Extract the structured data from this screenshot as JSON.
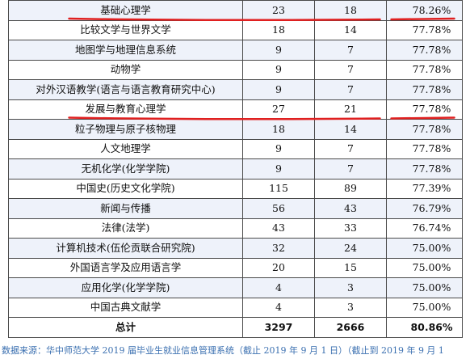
{
  "table": {
    "rows": [
      {
        "major": "基础心理学",
        "employed_total": "23",
        "employed": "18",
        "rate": "78.26%",
        "underlined": true
      },
      {
        "major": "比较文学与世界文学",
        "employed_total": "18",
        "employed": "14",
        "rate": "77.78%"
      },
      {
        "major": "地图学与地理信息系统",
        "employed_total": "9",
        "employed": "7",
        "rate": "77.78%"
      },
      {
        "major": "动物学",
        "employed_total": "9",
        "employed": "7",
        "rate": "77.78%"
      },
      {
        "major": "对外汉语教学(语言与语言教育研究中心)",
        "employed_total": "9",
        "employed": "7",
        "rate": "77.78%"
      },
      {
        "major": "发展与教育心理学",
        "employed_total": "27",
        "employed": "21",
        "rate": "77.78%",
        "underlined": true
      },
      {
        "major": "粒子物理与原子核物理",
        "employed_total": "18",
        "employed": "14",
        "rate": "77.78%"
      },
      {
        "major": "人文地理学",
        "employed_total": "9",
        "employed": "7",
        "rate": "77.78%"
      },
      {
        "major": "无机化学(化学学院)",
        "employed_total": "9",
        "employed": "7",
        "rate": "77.78%"
      },
      {
        "major": "中国史(历史文化学院)",
        "employed_total": "115",
        "employed": "89",
        "rate": "77.39%"
      },
      {
        "major": "新闻与传播",
        "employed_total": "56",
        "employed": "43",
        "rate": "76.79%"
      },
      {
        "major": "法律(法学)",
        "employed_total": "43",
        "employed": "33",
        "rate": "76.74%"
      },
      {
        "major": "计算机技术(伍伦贡联合研究院)",
        "employed_total": "32",
        "employed": "24",
        "rate": "75.00%"
      },
      {
        "major": "外国语言学及应用语言学",
        "employed_total": "20",
        "employed": "15",
        "rate": "75.00%"
      },
      {
        "major": "应用化学(化学学院)",
        "employed_total": "4",
        "employed": "3",
        "rate": "75.00%"
      },
      {
        "major": "中国古典文献学",
        "employed_total": "4",
        "employed": "3",
        "rate": "75.00%"
      }
    ],
    "total": {
      "label": "总计",
      "employed_total": "3297",
      "employed": "2666",
      "rate": "80.86%"
    }
  },
  "footer": "数据来源：华中师范大学 2019 届毕业生就业信息管理系统（截止 2019 年 9 月 1 日）（截止到 2019 年 9 月 1",
  "colors": {
    "row_alt_bg": "#eef2fa",
    "underline": "#e02020",
    "footer_text": "#3a6fb0"
  }
}
